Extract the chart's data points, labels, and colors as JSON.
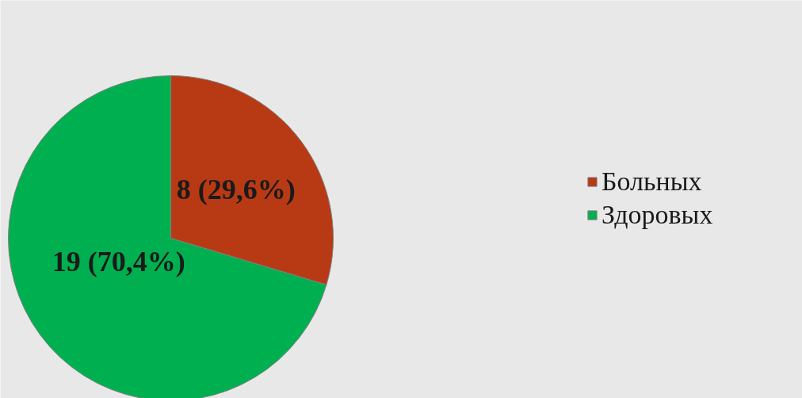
{
  "chart_data": {
    "type": "pie",
    "categories": [
      "Больных",
      "Здоровых"
    ],
    "values": [
      8,
      19
    ],
    "colors": [
      "#b83a14",
      "#00b050"
    ],
    "value_labels": [
      "8 (29,6%)",
      "19 (70,4%)"
    ],
    "legend": "right"
  }
}
